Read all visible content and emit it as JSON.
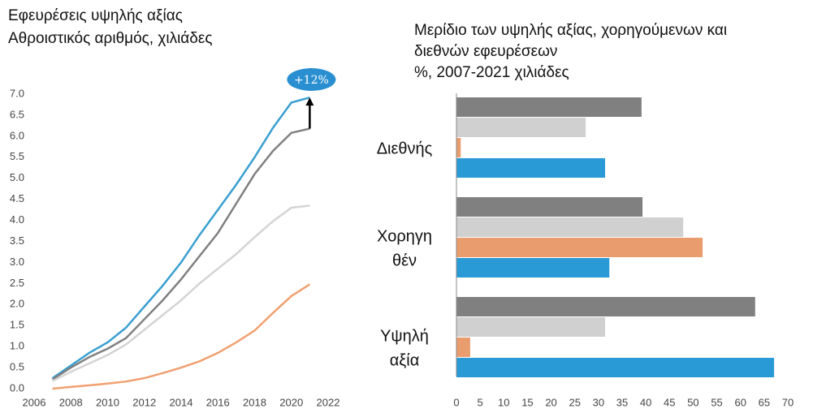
{
  "chart_data": [
    {
      "type": "line",
      "title": "Εφευρέσεις υψηλής αξίας",
      "subtitle": "Αθροιστικός αριθμός, χιλιάδες",
      "annotation": "+12%",
      "x": [
        2007,
        2008,
        2009,
        2010,
        2011,
        2012,
        2013,
        2014,
        2015,
        2016,
        2017,
        2018,
        2019,
        2020,
        2021
      ],
      "series": [
        {
          "color": "#3a9fd0",
          "values": [
            0.25,
            0.55,
            0.85,
            1.1,
            1.45,
            1.95,
            2.45,
            3.0,
            3.65,
            4.25,
            4.85,
            5.5,
            6.2,
            6.8,
            6.92
          ]
        },
        {
          "color": "#808080",
          "values": [
            0.22,
            0.5,
            0.75,
            0.95,
            1.2,
            1.65,
            2.1,
            2.6,
            3.15,
            3.7,
            4.4,
            5.1,
            5.65,
            6.08,
            6.18
          ]
        },
        {
          "color": "#d4d4d4",
          "values": [
            0.18,
            0.4,
            0.6,
            0.8,
            1.05,
            1.4,
            1.75,
            2.1,
            2.5,
            2.85,
            3.2,
            3.6,
            3.98,
            4.3,
            4.35
          ]
        },
        {
          "color": "#f0a070",
          "values": [
            0.0,
            0.04,
            0.08,
            0.12,
            0.17,
            0.25,
            0.37,
            0.5,
            0.65,
            0.85,
            1.1,
            1.38,
            1.8,
            2.2,
            2.48
          ]
        }
      ],
      "xlim": [
        2006,
        2022
      ],
      "xticks": [
        2006,
        2008,
        2010,
        2012,
        2014,
        2016,
        2018,
        2020,
        2022
      ],
      "ylim": [
        0,
        7
      ],
      "yticks": [
        {
          "value": 0,
          "label": "0.0"
        },
        {
          "value": 0.5,
          "label": "0.5"
        },
        {
          "value": 1,
          "label": "1.0"
        },
        {
          "value": 1.5,
          "label": "1.5"
        },
        {
          "value": 2,
          "label": "2.0"
        },
        {
          "value": 2.5,
          "label": "2.5"
        },
        {
          "value": 3,
          "label": "3.0"
        },
        {
          "value": 3.5,
          "label": "3.5"
        },
        {
          "value": 4,
          "label": "4.0"
        },
        {
          "value": 4.5,
          "label": "4.5"
        },
        {
          "value": 5,
          "label": "5.0"
        },
        {
          "value": 5.5,
          "label": "5.5"
        },
        {
          "value": 6,
          "label": "6.0"
        },
        {
          "value": 6.5,
          "label": "6.5"
        },
        {
          "value": 7,
          "label": "7.0"
        }
      ],
      "grid": false
    },
    {
      "type": "bar",
      "orientation": "horizontal",
      "title": [
        "Μερίδιο των υψηλής αξίας, χορηγούμενων και",
        "διεθνών εφευρέσεων"
      ],
      "subtitle": "%, 2007-2021 χιλιάδες",
      "categories": [
        [
          "Διεθνής"
        ],
        [
          "Χορηγη",
          "θέν"
        ],
        [
          "Υψηλή",
          "αξία"
        ]
      ],
      "series": [
        {
          "color": "#808080",
          "values": [
            39.1,
            39.3,
            63.1
          ]
        },
        {
          "color": "#d0d0d0",
          "values": [
            27.3,
            47.9,
            31.4
          ]
        },
        {
          "color": "#e99c6e",
          "values": [
            0.9,
            52,
            2.9
          ]
        },
        {
          "color": "#2a9ad6",
          "values": [
            31.4,
            32.3,
            67.1
          ]
        }
      ],
      "xlim": [
        0,
        70
      ],
      "xticks": [
        0,
        5,
        10,
        15,
        20,
        25,
        30,
        35,
        40,
        45,
        50,
        55,
        60,
        65,
        70
      ],
      "grid": false
    }
  ]
}
